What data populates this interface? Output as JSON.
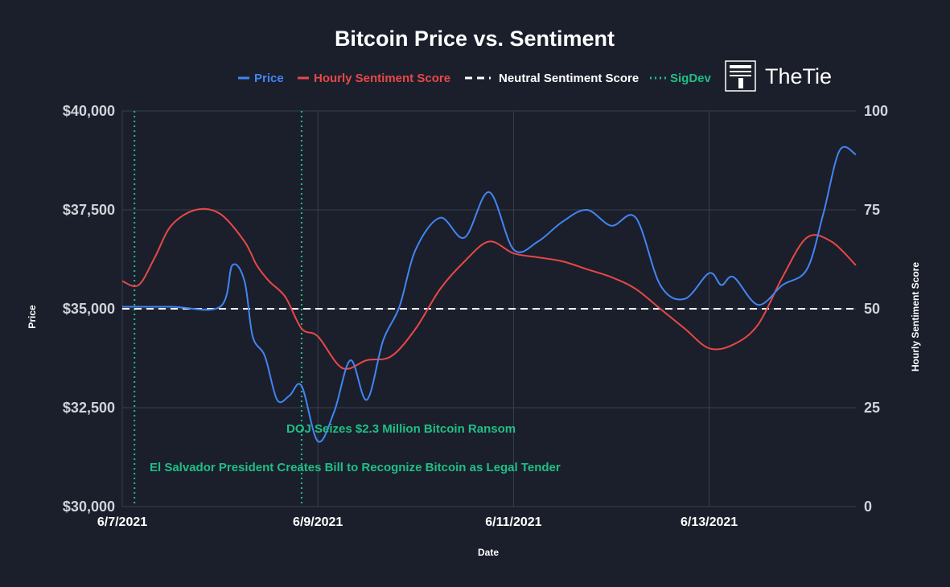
{
  "chart_data": {
    "type": "line",
    "title": "Bitcoin Price vs. Sentiment",
    "xlabel": "Date",
    "ylabel": "Price",
    "y2label": "Hourly Sentiment Score",
    "x_range": [
      "2021-06-07",
      "2021-06-14T12:00"
    ],
    "x_ticks": [
      "6/7/2021",
      "6/9/2021",
      "6/11/2021",
      "6/13/2021"
    ],
    "y_ticks": [
      "$30,000",
      "$32,500",
      "$35,000",
      "$37,500",
      "$40,000"
    ],
    "y2_ticks": [
      "0",
      "25",
      "50",
      "75",
      "100"
    ],
    "ylim": [
      30000,
      40000
    ],
    "y2lim": [
      0,
      100
    ],
    "grid": true,
    "legend_position": "top-center",
    "legend": [
      "Price",
      "Hourly Sentiment Score",
      "Neutral Sentiment Score",
      "SigDev"
    ],
    "colors": {
      "price": "#4285f4",
      "sentiment": "#e84848",
      "neutral": "#ffffff",
      "sigdev": "#1fbf86",
      "grid": "#3a3f4c",
      "background": "#1b1f2b"
    },
    "series": [
      {
        "name": "Price",
        "axis": "left",
        "x": [
          "2021-06-07T00:00",
          "2021-06-07T12:00",
          "2021-06-08T00:00",
          "2021-06-08T03:00",
          "2021-06-08T06:00",
          "2021-06-08T08:00",
          "2021-06-08T11:00",
          "2021-06-08T14:00",
          "2021-06-08T17:00",
          "2021-06-08T20:00",
          "2021-06-09T00:00",
          "2021-06-09T04:00",
          "2021-06-09T08:00",
          "2021-06-09T12:00",
          "2021-06-09T16:00",
          "2021-06-09T20:00",
          "2021-06-10T00:00",
          "2021-06-10T06:00",
          "2021-06-10T12:00",
          "2021-06-10T18:00",
          "2021-06-11T00:00",
          "2021-06-11T06:00",
          "2021-06-11T12:00",
          "2021-06-11T18:00",
          "2021-06-12T00:00",
          "2021-06-12T06:00",
          "2021-06-12T12:00",
          "2021-06-12T18:00",
          "2021-06-13T00:00",
          "2021-06-13T03:00",
          "2021-06-13T06:00",
          "2021-06-13T12:00",
          "2021-06-13T18:00",
          "2021-06-14T00:00",
          "2021-06-14T04:00",
          "2021-06-14T08:00",
          "2021-06-14T12:00"
        ],
        "values": [
          35050,
          35050,
          35050,
          36100,
          35700,
          34300,
          33800,
          32700,
          32800,
          33050,
          31650,
          32400,
          33700,
          32700,
          34200,
          35050,
          36500,
          37300,
          36800,
          37950,
          36500,
          36700,
          37200,
          37500,
          37100,
          37300,
          35600,
          35250,
          35900,
          35600,
          35800,
          35100,
          35600,
          36000,
          37400,
          39000,
          38900
        ]
      },
      {
        "name": "Hourly Sentiment Score",
        "axis": "right",
        "x": [
          "2021-06-07T00:00",
          "2021-06-07T04:00",
          "2021-06-07T08:00",
          "2021-06-07T12:00",
          "2021-06-07T18:00",
          "2021-06-08T00:00",
          "2021-06-08T06:00",
          "2021-06-08T09:00",
          "2021-06-08T12:00",
          "2021-06-08T16:00",
          "2021-06-08T20:00",
          "2021-06-09T00:00",
          "2021-06-09T06:00",
          "2021-06-09T12:00",
          "2021-06-09T18:00",
          "2021-06-10T00:00",
          "2021-06-10T06:00",
          "2021-06-10T12:00",
          "2021-06-10T18:00",
          "2021-06-11T00:00",
          "2021-06-11T06:00",
          "2021-06-11T12:00",
          "2021-06-11T18:00",
          "2021-06-12T00:00",
          "2021-06-12T06:00",
          "2021-06-12T12:00",
          "2021-06-12T18:00",
          "2021-06-13T00:00",
          "2021-06-13T06:00",
          "2021-06-13T12:00",
          "2021-06-13T18:00",
          "2021-06-14T00:00",
          "2021-06-14T06:00",
          "2021-06-14T12:00"
        ],
        "values": [
          57,
          56,
          63,
          71,
          75,
          74,
          67,
          61,
          57,
          53,
          45,
          43,
          35,
          37,
          38,
          45,
          55,
          62,
          67,
          64,
          63,
          62,
          60,
          58,
          55,
          50,
          45,
          40,
          41,
          46,
          58,
          68,
          67,
          61
        ]
      },
      {
        "name": "Neutral Sentiment Score",
        "axis": "right",
        "x": [
          "2021-06-07T00:00",
          "2021-06-14T12:00"
        ],
        "values": [
          50,
          50
        ]
      }
    ],
    "sigdev": [
      {
        "x": "2021-06-07T03:00",
        "label": "El Salvador President Creates Bill to Recognize Bitcoin as Legal Tender"
      },
      {
        "x": "2021-06-08T20:00",
        "label": "DOJ Seizes $2.3 Million Bitcoin Ransom"
      }
    ]
  },
  "logo": {
    "text": "TheTie"
  }
}
